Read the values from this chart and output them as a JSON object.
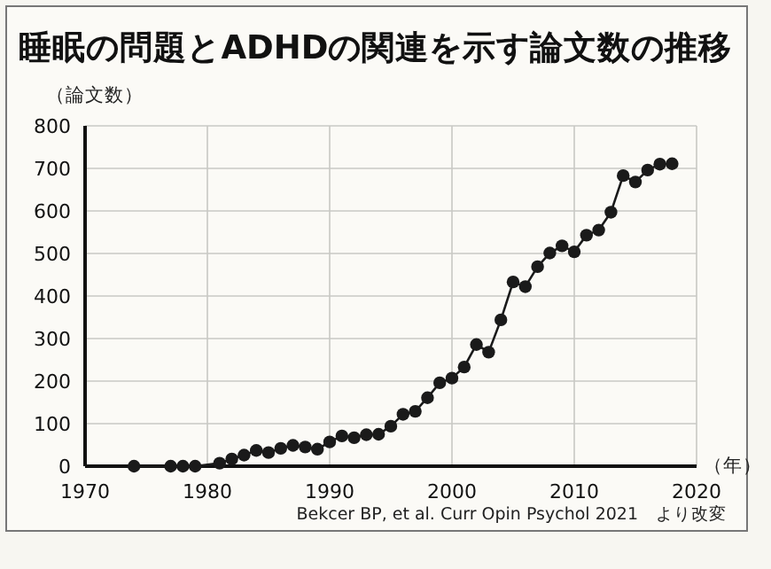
{
  "chart_data": {
    "type": "line",
    "title": "睡眠の問題とADHDの関連を示す論文数の推移",
    "xlabel": "（年）",
    "ylabel": "（論文数）",
    "x": [
      1974,
      1977,
      1978,
      1979,
      1981,
      1982,
      1983,
      1984,
      1985,
      1986,
      1987,
      1988,
      1989,
      1990,
      1991,
      1992,
      1993,
      1994,
      1995,
      1996,
      1997,
      1998,
      1999,
      2000,
      2001,
      2002,
      2003,
      2004,
      2005,
      2006,
      2007,
      2008,
      2009,
      2010,
      2011,
      2012,
      2013,
      2014,
      2015,
      2016,
      2017,
      2018
    ],
    "series": [
      {
        "color": "#1a1a1a",
        "values": [
          0,
          0,
          0,
          0,
          7,
          17,
          26,
          37,
          32,
          42,
          49,
          45,
          40,
          57,
          71,
          67,
          74,
          75,
          94,
          122,
          129,
          161,
          196,
          207,
          233,
          286,
          268,
          344,
          433,
          422,
          469,
          501,
          518,
          504,
          543,
          555,
          597,
          683,
          668,
          696,
          710,
          711
        ]
      }
    ],
    "xlim": [
      1970,
      2020
    ],
    "xticks": [
      1970,
      1980,
      1990,
      2000,
      2010,
      2020
    ],
    "ylim": [
      0,
      800
    ],
    "yticks": [
      0,
      100,
      200,
      300,
      400,
      500,
      600,
      700,
      800
    ],
    "grid": true,
    "marker": "circle",
    "line_style": "solid",
    "annotations": [
      "Bekcer BP, et al. Curr Opin Psychol 2021　より改変"
    ]
  }
}
